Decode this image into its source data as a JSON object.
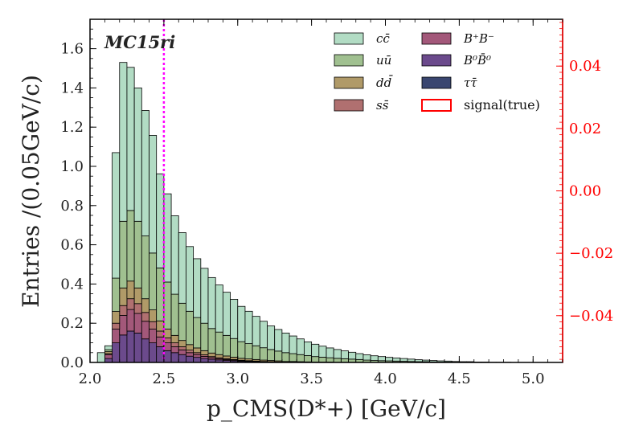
{
  "chart_data": {
    "type": "area",
    "style": "stacked-step-histogram",
    "tag": "MC15ri",
    "xlabel": "p_CMS(D*+) [GeV/c]",
    "ylabel": "Entries /(0.05GeV/c)",
    "xlim": [
      2.0,
      5.2
    ],
    "ylim": [
      0,
      1.75
    ],
    "y2lim": [
      -0.055,
      0.055
    ],
    "x_ticks": [
      "2.0",
      "2.5",
      "3.0",
      "3.5",
      "4.0",
      "4.5",
      "5.0"
    ],
    "y_ticks": [
      "0.0",
      "0.2",
      "0.4",
      "0.6",
      "0.8",
      "1.0",
      "1.2",
      "1.4",
      "1.6"
    ],
    "y2_ticks": [
      "−0.04",
      "−0.02",
      "0.00",
      "0.02",
      "0.04"
    ],
    "y2_tick_values": [
      -0.04,
      -0.02,
      0.0,
      0.02,
      0.04
    ],
    "y2_color": "#ff0000",
    "cut_line": {
      "x": 2.5,
      "color": "#ff00ff",
      "style": "dotted"
    },
    "bin_width": 0.05,
    "bin_start": 2.05,
    "series_stack_order": [
      "B0B0bar",
      "B+B-",
      "ssbar",
      "ddbar",
      "uubar",
      "ccbar"
    ],
    "series": [
      {
        "key": "B0B0bar",
        "name": "B⁰B̄⁰",
        "color": "#6b4a8c",
        "values": [
          0,
          0.02,
          0.1,
          0.14,
          0.16,
          0.15,
          0.12,
          0.1,
          0.08,
          0.06,
          0.05,
          0.04,
          0.032,
          0.026,
          0.02,
          0.016,
          0.013,
          0.01,
          0.008,
          0.006,
          0.005,
          0.004,
          0.003,
          0.002,
          0.002,
          0.001,
          0.001,
          0.001,
          0,
          0,
          0,
          0,
          0,
          0,
          0,
          0,
          0,
          0,
          0,
          0,
          0,
          0,
          0,
          0,
          0,
          0,
          0,
          0,
          0,
          0,
          0,
          0,
          0,
          0,
          0,
          0,
          0,
          0,
          0,
          0,
          0,
          0,
          0,
          0
        ]
      },
      {
        "key": "B+B-",
        "name": "B⁺B⁻",
        "color": "#a3587a",
        "values": [
          0,
          0.02,
          0.07,
          0.1,
          0.11,
          0.1,
          0.09,
          0.07,
          0.05,
          0.04,
          0.03,
          0.024,
          0.018,
          0.014,
          0.011,
          0.008,
          0.006,
          0.005,
          0.004,
          0.003,
          0.002,
          0.002,
          0.001,
          0.001,
          0.001,
          0,
          0,
          0,
          0,
          0,
          0,
          0,
          0,
          0,
          0,
          0,
          0,
          0,
          0,
          0,
          0,
          0,
          0,
          0,
          0,
          0,
          0,
          0,
          0,
          0,
          0,
          0,
          0,
          0,
          0,
          0,
          0,
          0,
          0,
          0,
          0,
          0,
          0,
          0
        ]
      },
      {
        "key": "ssbar",
        "name": "ss̄",
        "color": "#b07070",
        "values": [
          0,
          0.005,
          0.03,
          0.05,
          0.055,
          0.05,
          0.045,
          0.038,
          0.03,
          0.025,
          0.02,
          0.016,
          0.013,
          0.01,
          0.008,
          0.006,
          0.005,
          0.004,
          0.003,
          0.002,
          0.002,
          0.001,
          0.001,
          0.001,
          0,
          0,
          0,
          0,
          0,
          0,
          0,
          0,
          0,
          0,
          0,
          0,
          0,
          0,
          0,
          0,
          0,
          0,
          0,
          0,
          0,
          0,
          0,
          0,
          0,
          0,
          0,
          0,
          0,
          0,
          0,
          0,
          0,
          0,
          0,
          0,
          0,
          0,
          0,
          0
        ]
      },
      {
        "key": "ddbar",
        "name": "dd̄",
        "color": "#b09a68",
        "values": [
          0,
          0.01,
          0.06,
          0.09,
          0.09,
          0.08,
          0.07,
          0.06,
          0.052,
          0.045,
          0.038,
          0.032,
          0.028,
          0.024,
          0.021,
          0.018,
          0.016,
          0.014,
          0.012,
          0.01,
          0.009,
          0.008,
          0.007,
          0.006,
          0.005,
          0.004,
          0.004,
          0.003,
          0.003,
          0.002,
          0.002,
          0.002,
          0.001,
          0.001,
          0.001,
          0.001,
          0,
          0,
          0,
          0,
          0,
          0,
          0,
          0,
          0,
          0,
          0,
          0,
          0,
          0,
          0,
          0,
          0,
          0,
          0,
          0,
          0,
          0,
          0,
          0,
          0,
          0,
          0,
          0
        ]
      },
      {
        "key": "uubar",
        "name": "uū",
        "color": "#a0c090",
        "values": [
          0,
          0.01,
          0.17,
          0.34,
          0.36,
          0.34,
          0.32,
          0.29,
          0.27,
          0.24,
          0.21,
          0.19,
          0.17,
          0.155,
          0.14,
          0.125,
          0.115,
          0.105,
          0.095,
          0.085,
          0.078,
          0.07,
          0.063,
          0.056,
          0.05,
          0.045,
          0.04,
          0.036,
          0.032,
          0.028,
          0.025,
          0.022,
          0.02,
          0.018,
          0.016,
          0.014,
          0.012,
          0.01,
          0.009,
          0.008,
          0.007,
          0.006,
          0.005,
          0.004,
          0.004,
          0.003,
          0.002,
          0.002,
          0.001,
          0.001,
          0.001,
          0,
          0,
          0,
          0,
          0,
          0,
          0,
          0,
          0,
          0,
          0,
          0,
          0
        ]
      },
      {
        "key": "ccbar",
        "name": "cc̄",
        "color": "#b2dcc4",
        "values": [
          0.05,
          0.02,
          0.64,
          0.81,
          0.73,
          0.68,
          0.64,
          0.6,
          0.48,
          0.45,
          0.4,
          0.36,
          0.33,
          0.3,
          0.28,
          0.26,
          0.24,
          0.22,
          0.2,
          0.18,
          0.165,
          0.15,
          0.135,
          0.12,
          0.11,
          0.1,
          0.09,
          0.08,
          0.07,
          0.063,
          0.056,
          0.05,
          0.045,
          0.04,
          0.035,
          0.03,
          0.027,
          0.024,
          0.021,
          0.018,
          0.016,
          0.014,
          0.012,
          0.01,
          0.008,
          0.007,
          0.006,
          0.005,
          0.004,
          0.003,
          0.003,
          0.002,
          0.002,
          0.001,
          0.001,
          0.001,
          0,
          0,
          0,
          0,
          0,
          0,
          0,
          0
        ]
      },
      {
        "key": "signal",
        "name": "signal(true)",
        "color": "#ff0000",
        "values": []
      }
    ],
    "legend": {
      "placement": "top-right",
      "columns": [
        [
          {
            "label": "cc̄",
            "color": "#b2dcc4",
            "key": "ccbar"
          },
          {
            "label": "uū",
            "color": "#a0c090",
            "key": "uubar"
          },
          {
            "label": "dd̄",
            "color": "#b09a68",
            "key": "ddbar"
          },
          {
            "label": "ss̄",
            "color": "#b07070",
            "key": "ssbar"
          }
        ],
        [
          {
            "label": "B⁺B⁻",
            "color": "#a3587a",
            "key": "B+B-"
          },
          {
            "label": "B⁰B̄⁰",
            "color": "#6b4a8c",
            "key": "B0B0bar"
          },
          {
            "label": "ττ̄",
            "color": "#3a4670",
            "key": "tautau"
          },
          {
            "label": "signal(true)",
            "color": "#ff0000",
            "key": "signal",
            "outline": true
          }
        ]
      ]
    }
  }
}
